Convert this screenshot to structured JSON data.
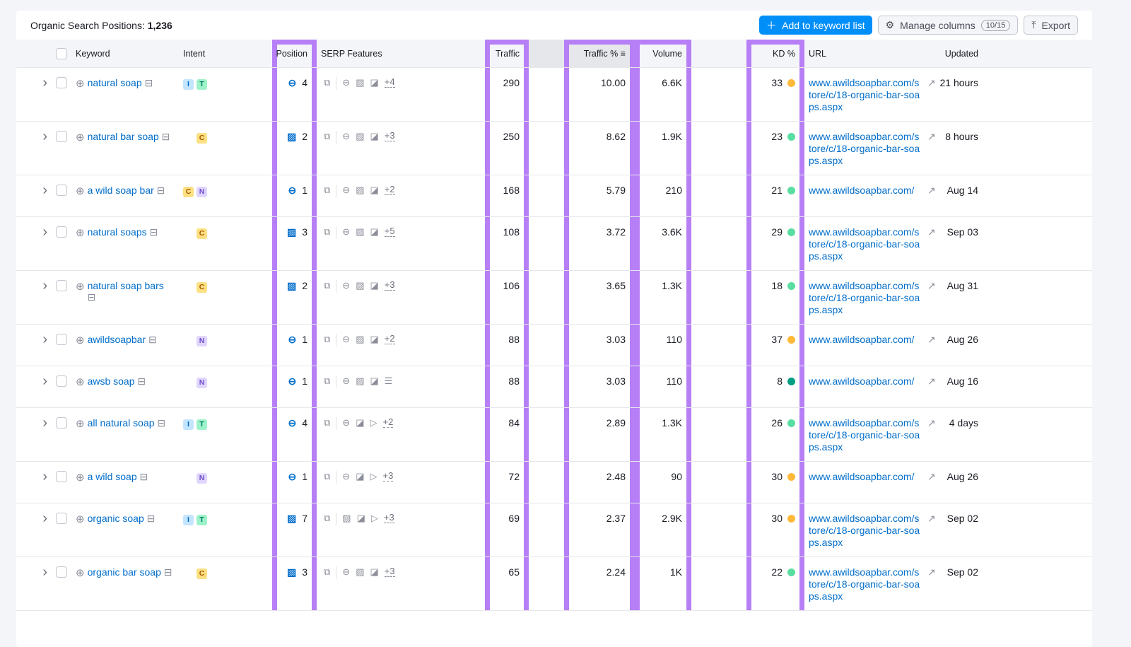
{
  "header": {
    "title": "Organic Search Positions:",
    "count": "1,236",
    "add_label": "Add to keyword list",
    "manage_label": "Manage columns",
    "manage_count": "10/15",
    "export_label": "Export"
  },
  "columns": [
    "Keyword",
    "Intent",
    "Position",
    "SERP Features",
    "Traffic",
    "",
    "Traffic %",
    "Volume",
    "",
    "KD %",
    "URL",
    "Updated"
  ],
  "colors": {
    "accent": "#008ff8",
    "highlight": "#b77ff6",
    "kd_yellow": "#ffb938",
    "kd_green": "#59dda0",
    "kd_dark_green": "#009f81"
  },
  "rows": [
    {
      "keyword": "natural soap",
      "intent": [
        "I",
        "T"
      ],
      "pos_icon": "link",
      "position": "4",
      "serp": [
        "link",
        "image",
        "image-stack"
      ],
      "more": "+4",
      "traffic": "290",
      "traffic_pct": "10.00",
      "volume": "6.6K",
      "kd": "33",
      "kd_color": "#ffb938",
      "url": "www.awildsoapbar.com/store/c/18-organic-bar-soaps.aspx",
      "updated": "21 hours"
    },
    {
      "keyword": "natural bar soap",
      "intent": [
        "C"
      ],
      "pos_icon": "image",
      "position": "2",
      "serp": [
        "link",
        "image",
        "image-stack"
      ],
      "more": "+3",
      "traffic": "250",
      "traffic_pct": "8.62",
      "volume": "1.9K",
      "kd": "23",
      "kd_color": "#59dda0",
      "url": "www.awildsoapbar.com/store/c/18-organic-bar-soaps.aspx",
      "updated": "8 hours"
    },
    {
      "keyword": "a wild soap bar",
      "intent": [
        "C",
        "N"
      ],
      "pos_icon": "link",
      "position": "1",
      "serp": [
        "link",
        "image",
        "image-stack"
      ],
      "more": "+2",
      "traffic": "168",
      "traffic_pct": "5.79",
      "volume": "210",
      "kd": "21",
      "kd_color": "#59dda0",
      "url": "www.awildsoapbar.com/",
      "updated": "Aug 14"
    },
    {
      "keyword": "natural soaps",
      "intent": [
        "C"
      ],
      "pos_icon": "image",
      "position": "3",
      "serp": [
        "link",
        "image",
        "image-stack"
      ],
      "more": "+5",
      "traffic": "108",
      "traffic_pct": "3.72",
      "volume": "3.6K",
      "kd": "29",
      "kd_color": "#59dda0",
      "url": "www.awildsoapbar.com/store/c/18-organic-bar-soaps.aspx",
      "updated": "Sep 03"
    },
    {
      "keyword": "natural soap bars",
      "intent": [
        "C"
      ],
      "pos_icon": "image",
      "position": "2",
      "serp": [
        "link",
        "image",
        "image-stack"
      ],
      "more": "+3",
      "traffic": "106",
      "traffic_pct": "3.65",
      "volume": "1.3K",
      "kd": "18",
      "kd_color": "#59dda0",
      "url": "www.awildsoapbar.com/store/c/18-organic-bar-soaps.aspx",
      "updated": "Aug 31"
    },
    {
      "keyword": "awildsoapbar",
      "intent": [
        "N"
      ],
      "pos_icon": "link",
      "position": "1",
      "serp": [
        "link",
        "image",
        "image-stack"
      ],
      "more": "+2",
      "traffic": "88",
      "traffic_pct": "3.03",
      "volume": "110",
      "kd": "37",
      "kd_color": "#ffb938",
      "url": "www.awildsoapbar.com/",
      "updated": "Aug 26"
    },
    {
      "keyword": "awsb soap",
      "intent": [
        "N"
      ],
      "pos_icon": "link",
      "position": "1",
      "serp": [
        "link",
        "image",
        "image-stack",
        "list"
      ],
      "more": "",
      "traffic": "88",
      "traffic_pct": "3.03",
      "volume": "110",
      "kd": "8",
      "kd_color": "#009f81",
      "url": "www.awildsoapbar.com/",
      "updated": "Aug 16"
    },
    {
      "keyword": "all natural soap",
      "intent": [
        "I",
        "T"
      ],
      "pos_icon": "link",
      "position": "4",
      "serp": [
        "link",
        "image-stack",
        "video"
      ],
      "more": "+2",
      "traffic": "84",
      "traffic_pct": "2.89",
      "volume": "1.3K",
      "kd": "26",
      "kd_color": "#59dda0",
      "url": "www.awildsoapbar.com/store/c/18-organic-bar-soaps.aspx",
      "updated": "4 days"
    },
    {
      "keyword": "a wild soap",
      "intent": [
        "N"
      ],
      "pos_icon": "link",
      "position": "1",
      "serp": [
        "link",
        "image-stack",
        "video"
      ],
      "more": "+3",
      "traffic": "72",
      "traffic_pct": "2.48",
      "volume": "90",
      "kd": "30",
      "kd_color": "#ffb938",
      "url": "www.awildsoapbar.com/",
      "updated": "Aug 26"
    },
    {
      "keyword": "organic soap",
      "intent": [
        "I",
        "T"
      ],
      "pos_icon": "image",
      "position": "7",
      "serp": [
        "image",
        "image-stack",
        "video"
      ],
      "more": "+3",
      "traffic": "69",
      "traffic_pct": "2.37",
      "volume": "2.9K",
      "kd": "30",
      "kd_color": "#ffb938",
      "url": "www.awildsoapbar.com/store/c/18-organic-bar-soaps.aspx",
      "updated": "Sep 02"
    },
    {
      "keyword": "organic bar soap",
      "intent": [
        "C"
      ],
      "pos_icon": "image",
      "position": "3",
      "serp": [
        "link",
        "image",
        "image-stack"
      ],
      "more": "+3",
      "traffic": "65",
      "traffic_pct": "2.24",
      "volume": "1K",
      "kd": "22",
      "kd_color": "#59dda0",
      "url": "www.awildsoapbar.com/store/c/18-organic-bar-soaps.aspx",
      "updated": "Sep 02"
    }
  ]
}
